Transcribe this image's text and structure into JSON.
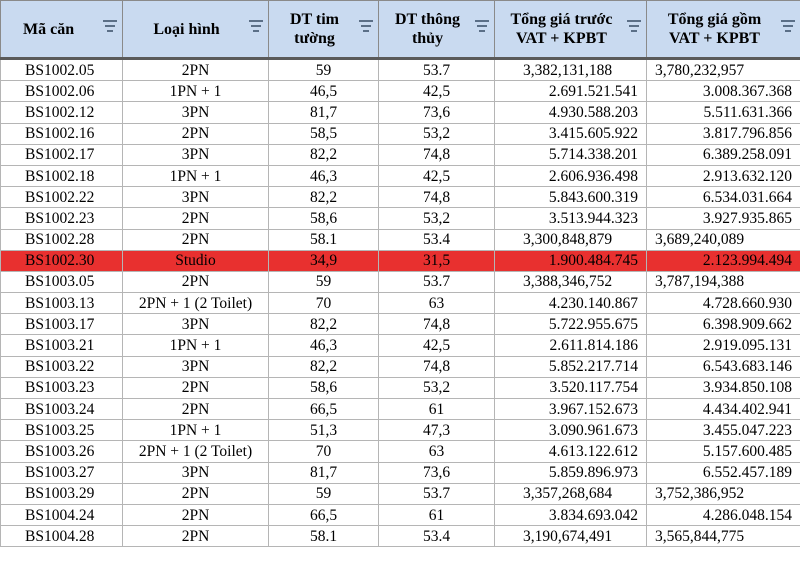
{
  "columns": [
    {
      "label": "Mã căn"
    },
    {
      "label": "Loại hình"
    },
    {
      "label": "DT tim tường"
    },
    {
      "label": "DT thông thủy"
    },
    {
      "label": "Tổng giá trước VAT + KPBT"
    },
    {
      "label": "Tổng giá gồm VAT + KPBT"
    }
  ],
  "highlight_color": "#e8302f",
  "header_color": "#c9daf0",
  "rows": [
    {
      "code": "BS1002.05",
      "type": "2PN",
      "dt_tim": "59",
      "dt_thong": "53.7",
      "price_pre": "3,382,131,188",
      "price_total": "3,780,232,957",
      "money_align": "left"
    },
    {
      "code": "BS1002.06",
      "type": "1PN + 1",
      "dt_tim": "46,5",
      "dt_thong": "42,5",
      "price_pre": "2.691.521.541",
      "price_total": "3.008.367.368"
    },
    {
      "code": "BS1002.12",
      "type": "3PN",
      "dt_tim": "81,7",
      "dt_thong": "73,6",
      "price_pre": "4.930.588.203",
      "price_total": "5.511.631.366"
    },
    {
      "code": "BS1002.16",
      "type": "2PN",
      "dt_tim": "58,5",
      "dt_thong": "53,2",
      "price_pre": "3.415.605.922",
      "price_total": "3.817.796.856"
    },
    {
      "code": "BS1002.17",
      "type": "3PN",
      "dt_tim": "82,2",
      "dt_thong": "74,8",
      "price_pre": "5.714.338.201",
      "price_total": "6.389.258.091"
    },
    {
      "code": "BS1002.18",
      "type": "1PN + 1",
      "dt_tim": "46,3",
      "dt_thong": "42,5",
      "price_pre": "2.606.936.498",
      "price_total": "2.913.632.120"
    },
    {
      "code": "BS1002.22",
      "type": "3PN",
      "dt_tim": "82,2",
      "dt_thong": "74,8",
      "price_pre": "5.843.600.319",
      "price_total": "6.534.031.664"
    },
    {
      "code": "BS1002.23",
      "type": "2PN",
      "dt_tim": "58,6",
      "dt_thong": "53,2",
      "price_pre": "3.513.944.323",
      "price_total": "3.927.935.865"
    },
    {
      "code": "BS1002.28",
      "type": "2PN",
      "dt_tim": "58.1",
      "dt_thong": "53.4",
      "price_pre": "3,300,848,879",
      "price_total": "3,689,240,089",
      "money_align": "left"
    },
    {
      "code": "BS1002.30",
      "type": "Studio",
      "dt_tim": "34,9",
      "dt_thong": "31,5",
      "price_pre": "1.900.484.745",
      "price_total": "2.123.994.494",
      "highlight": true
    },
    {
      "code": "BS1003.05",
      "type": "2PN",
      "dt_tim": "59",
      "dt_thong": "53.7",
      "price_pre": "3,388,346,752",
      "price_total": "3,787,194,388",
      "money_align": "left"
    },
    {
      "code": "BS1003.13",
      "type": "2PN + 1 (2 Toilet)",
      "dt_tim": "70",
      "dt_thong": "63",
      "price_pre": "4.230.140.867",
      "price_total": "4.728.660.930"
    },
    {
      "code": "BS1003.17",
      "type": "3PN",
      "dt_tim": "82,2",
      "dt_thong": "74,8",
      "price_pre": "5.722.955.675",
      "price_total": "6.398.909.662"
    },
    {
      "code": "BS1003.21",
      "type": "1PN + 1",
      "dt_tim": "46,3",
      "dt_thong": "42,5",
      "price_pre": "2.611.814.186",
      "price_total": "2.919.095.131"
    },
    {
      "code": "BS1003.22",
      "type": "3PN",
      "dt_tim": "82,2",
      "dt_thong": "74,8",
      "price_pre": "5.852.217.714",
      "price_total": "6.543.683.146"
    },
    {
      "code": "BS1003.23",
      "type": "2PN",
      "dt_tim": "58,6",
      "dt_thong": "53,2",
      "price_pre": "3.520.117.754",
      "price_total": "3.934.850.108"
    },
    {
      "code": "BS1003.24",
      "type": "2PN",
      "dt_tim": "66,5",
      "dt_thong": "61",
      "price_pre": "3.967.152.673",
      "price_total": "4.434.402.941"
    },
    {
      "code": "BS1003.25",
      "type": "1PN + 1",
      "dt_tim": "51,3",
      "dt_thong": "47,3",
      "price_pre": "3.090.961.673",
      "price_total": "3.455.047.223"
    },
    {
      "code": "BS1003.26",
      "type": "2PN + 1 (2 Toilet)",
      "dt_tim": "70",
      "dt_thong": "63",
      "price_pre": "4.613.122.612",
      "price_total": "5.157.600.485"
    },
    {
      "code": "BS1003.27",
      "type": "3PN",
      "dt_tim": "81,7",
      "dt_thong": "73,6",
      "price_pre": "5.859.896.973",
      "price_total": "6.552.457.189"
    },
    {
      "code": "BS1003.29",
      "type": "2PN",
      "dt_tim": "59",
      "dt_thong": "53.7",
      "price_pre": "3,357,268,684",
      "price_total": "3,752,386,952",
      "money_align": "left"
    },
    {
      "code": "BS1004.24",
      "type": "2PN",
      "dt_tim": "66,5",
      "dt_thong": "61",
      "price_pre": "3.834.693.042",
      "price_total": "4.286.048.154"
    },
    {
      "code": "BS1004.28",
      "type": "2PN",
      "dt_tim": "58.1",
      "dt_thong": "53.4",
      "price_pre": "3,190,674,491",
      "price_total": "3,565,844,775",
      "money_align": "left"
    }
  ]
}
